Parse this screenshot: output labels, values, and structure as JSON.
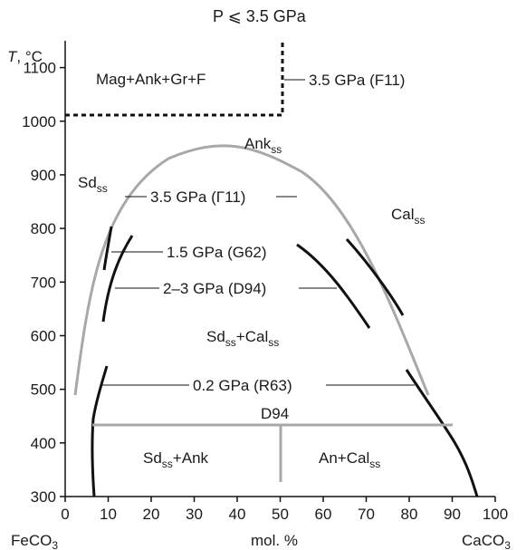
{
  "header": {
    "pressure_condition": "P ⩽ 3.5 GPa"
  },
  "axes": {
    "y_label_T": "T",
    "y_label_unit": ", °C",
    "x_label": "mol. %",
    "x_left_end": "FeCO",
    "x_left_end_sub": "3",
    "x_right_end": "CaCO",
    "x_right_end_sub": "3",
    "x_ticks": [
      "0",
      "10",
      "20",
      "30",
      "40",
      "50",
      "60",
      "70",
      "80",
      "90",
      "100"
    ],
    "y_ticks": [
      "300",
      "400",
      "500",
      "600",
      "700",
      "800",
      "900",
      "1000",
      "1100"
    ],
    "x_range": [
      0,
      100
    ],
    "y_range": [
      300,
      1150
    ]
  },
  "fields": {
    "mag_ank_gr_f": "Mag+Ank+Gr+F",
    "ank": "Ank",
    "sd": "Sd",
    "cal": "Cal",
    "sd_cal_a": "Sd",
    "sd_cal_plus": "+Cal",
    "sd_ank_a": "Sd",
    "sd_ank_b": "+Ank",
    "an_cal": "An+Cal",
    "ss": "ss"
  },
  "curve_labels": {
    "f11": "3.5 GPa (F11)",
    "g11": "3.5 GPa (Γ11)",
    "g62": "1.5 GPa (G62)",
    "d94_curve": "2–3 GPa (D94)",
    "r63": "0.2 GPa (R63)",
    "d94_line": "D94"
  },
  "colors": {
    "solvus_35": "#a8a8a8",
    "d94_line": "#a8a8a8",
    "curves": "#111111"
  }
}
